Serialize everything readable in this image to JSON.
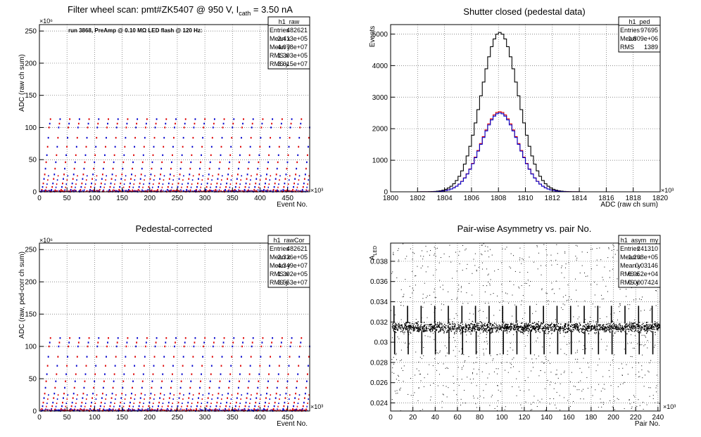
{
  "chart_data": [
    {
      "type": "scatter",
      "title_main": "Filter wheel scan: pmt#ZK5407 @   950 V, I",
      "title_sub": "cath",
      "title_tail": " = 3.50 nA",
      "annotation": "run 3868, PreAmp @ 0.10 MΩ LED flash @  120 Hz:",
      "xlabel": "Event No.",
      "ylabel": "ADC (raw ch sum)",
      "x_exponent": "×10³",
      "y_exponent": "×10⁶",
      "xlim": [
        0,
        490
      ],
      "ylim": [
        0,
        260
      ],
      "xticks": [
        0,
        50,
        100,
        150,
        200,
        250,
        300,
        350,
        400,
        450
      ],
      "yticks": [
        0,
        50,
        100,
        150,
        200,
        250
      ],
      "grid": true,
      "stats": {
        "name": "h1_raw",
        "rows": [
          {
            "label": "Entries",
            "value": "482621"
          },
          {
            "label": "Mean x",
            "value": "2.413e+05"
          },
          {
            "label": "Mean y",
            "value": "4.078e+07"
          },
          {
            "label": "RMS x",
            "value": "1.393e+05"
          },
          {
            "label": "RMS y",
            "value": "3.615e+07"
          }
        ]
      },
      "levels": [
        0.2,
        3,
        7.5,
        13,
        20,
        27,
        36,
        46,
        57,
        70,
        84,
        100,
        106,
        113
      ],
      "period": 17.5,
      "series_colors": [
        "#0000cc",
        "#dd0000"
      ]
    },
    {
      "type": "histogram",
      "title": "Shutter closed (pedestal data)",
      "xlabel": "ADC (raw ch sum)",
      "ylabel": "Events",
      "x_exponent": "×10³",
      "xlim": [
        1800,
        1820
      ],
      "ylim": [
        0,
        5300
      ],
      "xticks": [
        1800,
        1802,
        1804,
        1806,
        1808,
        1810,
        1812,
        1814,
        1816,
        1818,
        1820
      ],
      "yticks": [
        0,
        1000,
        2000,
        3000,
        4000,
        5000
      ],
      "grid": true,
      "stats": {
        "name": "h1_ped",
        "rows": [
          {
            "label": "Entries",
            "value": "97695"
          },
          {
            "label": "Mean",
            "value": "1.809e+06"
          },
          {
            "label": "RMS",
            "value": "1389"
          }
        ]
      },
      "series": [
        {
          "color": "#000000",
          "mean": 1808.1,
          "sigma": 1.39,
          "peak": 5050
        },
        {
          "color": "#dd0000",
          "mean": 1808.1,
          "sigma": 1.39,
          "peak": 2540
        },
        {
          "color": "#0000cc",
          "mean": 1808.1,
          "sigma": 1.39,
          "peak": 2500
        }
      ],
      "bin_width": 0.2
    },
    {
      "type": "scatter",
      "title": "Pedestal-corrected",
      "xlabel": "Event No.",
      "ylabel": "ADC (raw, ped-corr ch sum)",
      "x_exponent": "×10³",
      "y_exponent": "×10⁶",
      "xlim": [
        0,
        490
      ],
      "ylim": [
        0,
        260
      ],
      "xticks": [
        0,
        50,
        100,
        150,
        200,
        250,
        300,
        350,
        400,
        450
      ],
      "yticks": [
        0,
        50,
        100,
        150,
        200,
        250
      ],
      "grid": true,
      "stats": {
        "name": "h1_rawCor",
        "rows": [
          {
            "label": "Entries",
            "value": "482621"
          },
          {
            "label": "Mean x",
            "value": "2.326e+05"
          },
          {
            "label": "Mean y",
            "value": "4.349e+07"
          },
          {
            "label": "RMS x",
            "value": "1.392e+05"
          },
          {
            "label": "RMS y",
            "value": "3.553e+07"
          }
        ]
      },
      "levels": [
        0.2,
        3,
        7.5,
        13,
        20,
        27,
        36,
        46,
        57,
        70,
        84,
        100,
        106,
        113
      ],
      "period": 17.5,
      "series_colors": [
        "#0000cc",
        "#dd0000"
      ]
    },
    {
      "type": "scatter",
      "title": "Pair-wise Asymmetry vs. pair No.",
      "xlabel": "Pair No.",
      "ylabel": "A",
      "ylabel_sub": "LED",
      "x_exponent": "×10³",
      "xlim": [
        0,
        242
      ],
      "ylim": [
        0.0232,
        0.0398
      ],
      "xticks": [
        0,
        20,
        40,
        60,
        80,
        100,
        120,
        140,
        160,
        180,
        200,
        220,
        240
      ],
      "yticks": [
        0.024,
        0.026,
        0.028,
        0.03,
        0.032,
        0.034,
        0.036,
        0.038
      ],
      "ytick_labels": [
        "0.024",
        "0.026",
        "0.028",
        "0.03",
        "0.032",
        "0.034",
        "0.036",
        "0.038"
      ],
      "grid": true,
      "stats": {
        "name": "h1_asym_my",
        "rows": [
          {
            "label": "Entries",
            "value": "241310"
          },
          {
            "label": "Mean x",
            "value": "1.208e+05"
          },
          {
            "label": "Mean y",
            "value": "0.03146"
          },
          {
            "label": "RMS x",
            "value": "6.952e+04"
          },
          {
            "label": "RMS y",
            "value": "0.0007424"
          }
        ]
      },
      "band_center": 0.0315,
      "band_halfwidth": 0.0004,
      "spike_period": 12.2,
      "spike_top": 0.0336,
      "spike_bottom": 0.0288
    }
  ]
}
